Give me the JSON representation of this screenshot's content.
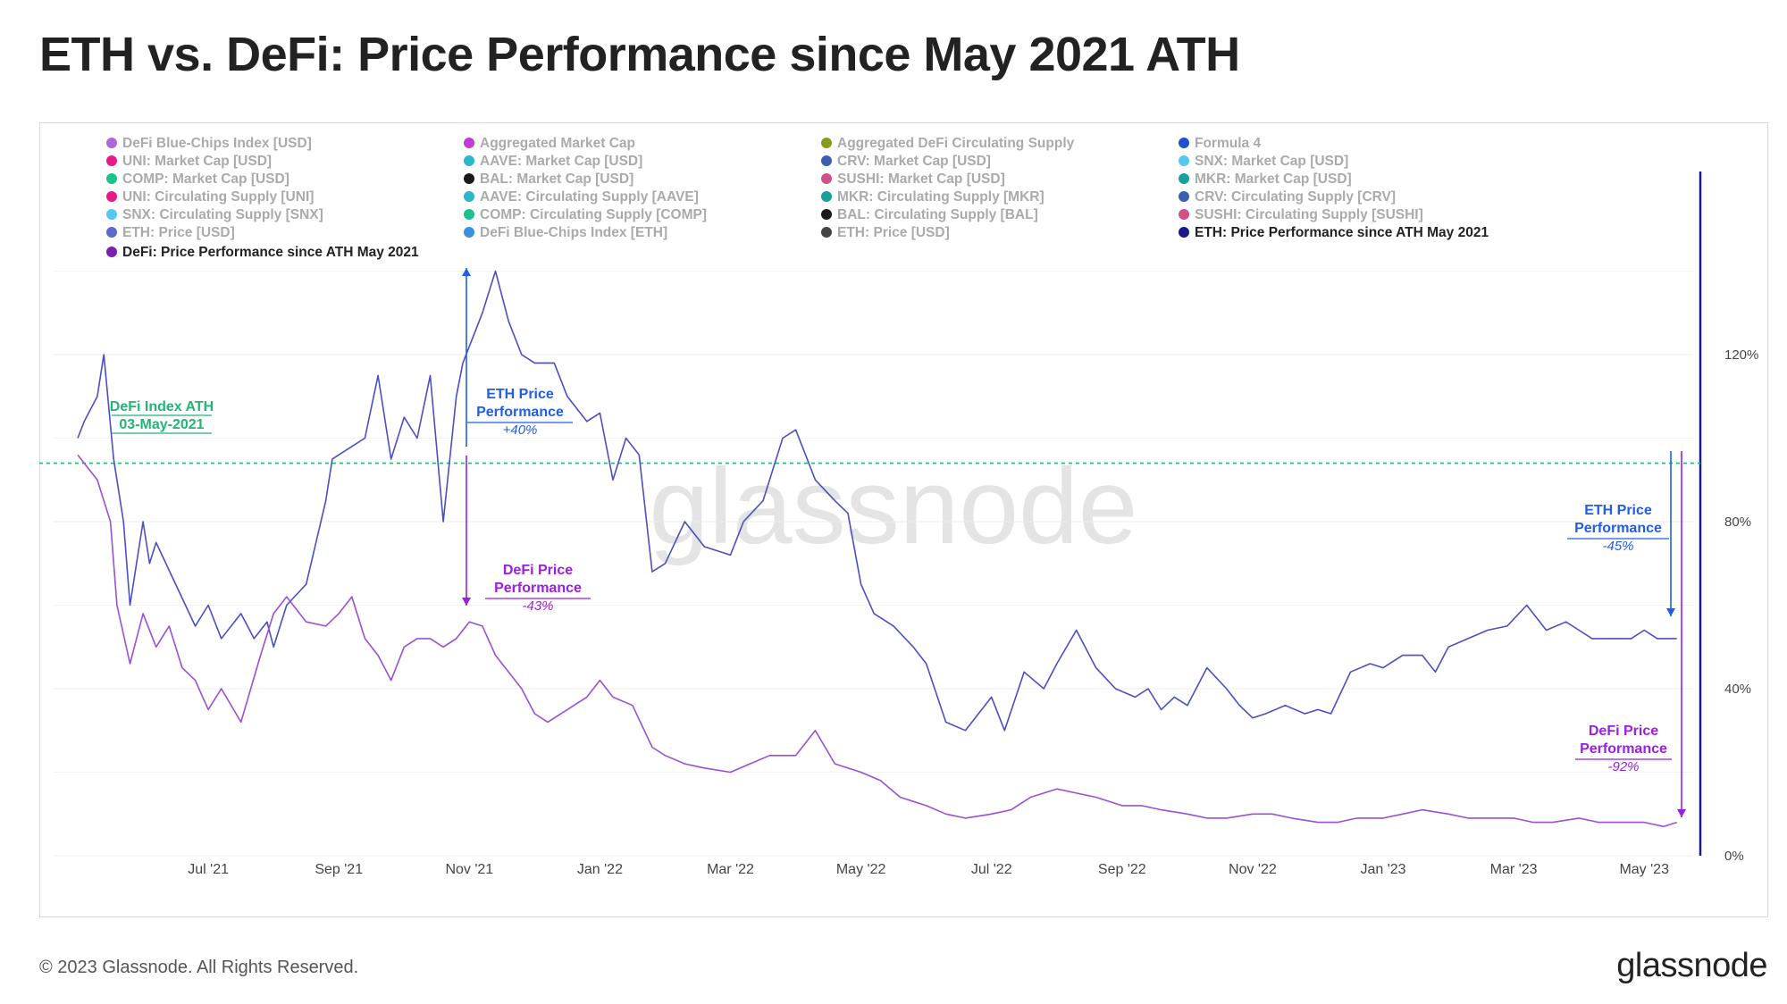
{
  "title": "ETH vs. DeFi: Price Performance since May 2021 ATH",
  "footer": {
    "copyright": "© 2023 Glassnode. All Rights Reserved.",
    "logo": "glassnode"
  },
  "watermark": "glassnode",
  "colors": {
    "eth": "#4a4fc2",
    "defi": "#9b4fd6",
    "ath_line": "#22b573",
    "eth_annot": "#1f5ee8",
    "defi_annot": "#9a1fe0",
    "axis_bar": "#1a1a8c",
    "grid": "#ececec",
    "tick": "#444444",
    "legend_inactive": "#aaaaaa",
    "legend_active": "#222222"
  },
  "legend": [
    {
      "label": "DeFi Blue-Chips Index [USD]",
      "color": "#b066d9",
      "active": false
    },
    {
      "label": "Aggregated Market Cap",
      "color": "#c23bd4",
      "active": false
    },
    {
      "label": "Aggregated DeFi Circulating Supply",
      "color": "#8a9a1a",
      "active": false
    },
    {
      "label": "Formula 4",
      "color": "#1f4fd1",
      "active": false
    },
    {
      "label": "UNI: Market Cap [USD]",
      "color": "#e8198b",
      "active": false
    },
    {
      "label": "AAVE: Market Cap [USD]",
      "color": "#2bb6c9",
      "active": false
    },
    {
      "label": "CRV: Market Cap [USD]",
      "color": "#3a5fb0",
      "active": false
    },
    {
      "label": "SNX: Market Cap [USD]",
      "color": "#55c8ef",
      "active": false
    },
    {
      "label": "COMP: Market Cap [USD]",
      "color": "#19c28e",
      "active": false
    },
    {
      "label": "BAL: Market Cap [USD]",
      "color": "#1a1a1a",
      "active": false
    },
    {
      "label": "SUSHI: Market Cap [USD]",
      "color": "#d0508a",
      "active": false
    },
    {
      "label": "MKR: Market Cap [USD]",
      "color": "#1aa09a",
      "active": false
    },
    {
      "label": "UNI: Circulating Supply [UNI]",
      "color": "#e8198b",
      "active": false
    },
    {
      "label": "AAVE: Circulating Supply [AAVE]",
      "color": "#2bb6c9",
      "active": false
    },
    {
      "label": "MKR: Circulating Supply [MKR]",
      "color": "#1aa09a",
      "active": false
    },
    {
      "label": "CRV: Circulating Supply [CRV]",
      "color": "#3a5fb0",
      "active": false
    },
    {
      "label": "SNX: Circulating Supply [SNX]",
      "color": "#55c8ef",
      "active": false
    },
    {
      "label": "COMP: Circulating Supply [COMP]",
      "color": "#19c28e",
      "active": false
    },
    {
      "label": "BAL: Circulating Supply [BAL]",
      "color": "#1a1a1a",
      "active": false
    },
    {
      "label": "SUSHI: Circulating Supply [SUSHI]",
      "color": "#d0508a",
      "active": false
    },
    {
      "label": "ETH: Price [USD]",
      "color": "#5a6ad0",
      "active": false
    },
    {
      "label": "DeFi Blue-Chips Index [ETH]",
      "color": "#3a90e0",
      "active": false
    },
    {
      "label": "ETH: Price [USD]",
      "color": "#444444",
      "active": false
    },
    {
      "label": "ETH: Price Performance since ATH May 2021",
      "color": "#1a1a8c",
      "active": true
    },
    {
      "label": "DeFi: Price Performance since ATH May 2021",
      "color": "#7a1fb0",
      "active": true
    }
  ],
  "annotations": {
    "ath_label_1": "DeFi Index ATH",
    "ath_label_2": "03-May-2021",
    "eth_nov_1": "ETH Price",
    "eth_nov_2": "Performance",
    "eth_nov_3": "+40%",
    "defi_nov_1": "DeFi Price",
    "defi_nov_2": "Performance",
    "defi_nov_3": "-43%",
    "eth_may_1": "ETH Price",
    "eth_may_2": "Performance",
    "eth_may_3": "-45%",
    "defi_may_1": "DeFi Price",
    "defi_may_2": "Performance",
    "defi_may_3": "-92%"
  },
  "chart_data": {
    "type": "line",
    "title": "ETH vs. DeFi: Price Performance since May 2021 ATH",
    "x_unit": "months since May 2021",
    "y_unit": "%",
    "ylim": [
      0,
      160
    ],
    "y_ticks": [
      0,
      40,
      80,
      120
    ],
    "y_tick_labels": [
      "0%",
      "40%",
      "80%",
      "120%"
    ],
    "x_ticks": [
      2,
      4,
      6,
      8,
      10,
      12,
      14,
      16,
      18,
      20,
      22,
      24
    ],
    "x_tick_labels": [
      "Jul '21",
      "Sep '21",
      "Nov '21",
      "Jan '22",
      "Mar '22",
      "May '22",
      "Jul '22",
      "Sep '22",
      "Nov '22",
      "Jan '23",
      "Mar '23",
      "May '23"
    ],
    "reference_line": {
      "label": "DeFi Index ATH 03-May-2021",
      "y": 94
    },
    "series": [
      {
        "name": "ETH: Price Performance since ATH May 2021",
        "x": [
          0.0,
          0.1,
          0.3,
          0.4,
          0.55,
          0.7,
          0.8,
          1.0,
          1.1,
          1.2,
          1.5,
          1.8,
          2.0,
          2.2,
          2.5,
          2.7,
          2.9,
          3.0,
          3.2,
          3.5,
          3.8,
          3.9,
          4.2,
          4.4,
          4.6,
          4.8,
          5.0,
          5.2,
          5.4,
          5.6,
          5.8,
          5.9,
          6.2,
          6.4,
          6.6,
          6.8,
          7.0,
          7.3,
          7.5,
          7.8,
          8.0,
          8.2,
          8.4,
          8.6,
          8.8,
          9.0,
          9.3,
          9.6,
          10.0,
          10.2,
          10.5,
          10.8,
          11.0,
          11.3,
          11.6,
          11.8,
          12.0,
          12.2,
          12.5,
          12.8,
          13.0,
          13.3,
          13.6,
          13.8,
          14.0,
          14.2,
          14.5,
          14.8,
          15.0,
          15.3,
          15.6,
          15.9,
          16.2,
          16.4,
          16.6,
          16.8,
          17.0,
          17.3,
          17.6,
          17.8,
          18.0,
          18.2,
          18.5,
          18.8,
          19.0,
          19.2,
          19.5,
          19.8,
          20.0,
          20.3,
          20.6,
          20.8,
          21.0,
          21.3,
          21.6,
          21.9,
          22.2,
          22.5,
          22.8,
          23.0,
          23.2,
          23.5,
          23.8,
          24.0,
          24.2,
          24.5
        ],
        "y": [
          100,
          104,
          110,
          120,
          95,
          80,
          60,
          80,
          70,
          75,
          65,
          55,
          60,
          52,
          58,
          52,
          56,
          50,
          60,
          65,
          85,
          95,
          98,
          100,
          115,
          95,
          105,
          100,
          115,
          80,
          110,
          118,
          130,
          140,
          128,
          120,
          118,
          118,
          110,
          104,
          106,
          90,
          100,
          96,
          68,
          70,
          80,
          74,
          72,
          80,
          85,
          100,
          102,
          90,
          85,
          82,
          65,
          58,
          55,
          50,
          46,
          32,
          30,
          34,
          38,
          30,
          44,
          40,
          46,
          54,
          45,
          40,
          38,
          40,
          35,
          38,
          36,
          45,
          40,
          36,
          33,
          34,
          36,
          34,
          35,
          34,
          44,
          46,
          45,
          48,
          48,
          44,
          50,
          52,
          54,
          55,
          60,
          54,
          56,
          54,
          52,
          52,
          52,
          54,
          52,
          52
        ]
      },
      {
        "name": "DeFi: Price Performance since ATH May 2021",
        "x": [
          0.0,
          0.3,
          0.5,
          0.6,
          0.8,
          1.0,
          1.2,
          1.4,
          1.6,
          1.8,
          2.0,
          2.2,
          2.5,
          2.8,
          3.0,
          3.2,
          3.5,
          3.8,
          4.0,
          4.2,
          4.4,
          4.6,
          4.8,
          5.0,
          5.2,
          5.4,
          5.6,
          5.8,
          6.0,
          6.2,
          6.4,
          6.6,
          6.8,
          7.0,
          7.2,
          7.5,
          7.8,
          8.0,
          8.2,
          8.5,
          8.8,
          9.0,
          9.3,
          9.6,
          10.0,
          10.3,
          10.6,
          11.0,
          11.3,
          11.6,
          12.0,
          12.3,
          12.6,
          13.0,
          13.3,
          13.6,
          14.0,
          14.3,
          14.6,
          15.0,
          15.3,
          15.6,
          16.0,
          16.3,
          16.6,
          17.0,
          17.3,
          17.6,
          18.0,
          18.3,
          18.6,
          19.0,
          19.3,
          19.6,
          20.0,
          20.3,
          20.6,
          21.0,
          21.3,
          21.6,
          22.0,
          22.3,
          22.6,
          23.0,
          23.3,
          23.6,
          24.0,
          24.3,
          24.5
        ],
        "y": [
          96,
          90,
          80,
          60,
          46,
          58,
          50,
          55,
          45,
          42,
          35,
          40,
          32,
          48,
          58,
          62,
          56,
          55,
          58,
          62,
          52,
          48,
          42,
          50,
          52,
          52,
          50,
          52,
          56,
          55,
          48,
          44,
          40,
          34,
          32,
          35,
          38,
          42,
          38,
          36,
          26,
          24,
          22,
          21,
          20,
          22,
          24,
          24,
          30,
          22,
          20,
          18,
          14,
          12,
          10,
          9,
          10,
          11,
          14,
          16,
          15,
          14,
          12,
          12,
          11,
          10,
          9,
          9,
          10,
          10,
          9,
          8,
          8,
          9,
          9,
          10,
          11,
          10,
          9,
          9,
          9,
          8,
          8,
          9,
          8,
          8,
          8,
          7,
          8
        ]
      }
    ]
  }
}
